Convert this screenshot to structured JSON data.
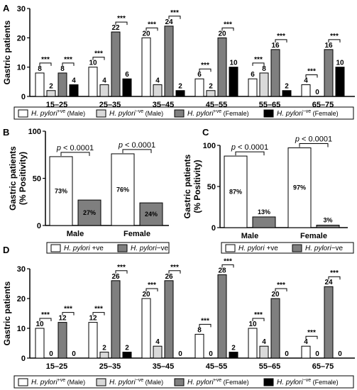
{
  "colors": {
    "male_pos": "#ffffff",
    "male_neg": "#d9d9d9",
    "female_pos": "#7f7f7f",
    "female_neg": "#000000",
    "stroke": "#000000"
  },
  "chart_data": [
    {
      "panel": "A",
      "type": "bar",
      "ylabel": "Gastric patients",
      "ylim": [
        0,
        30
      ],
      "yticks": [
        "0",
        "10",
        "20",
        "30"
      ],
      "categories": [
        "15–25",
        "25–35",
        "35–45",
        "45–55",
        "55–65",
        "65–75"
      ],
      "series": [
        {
          "name": "H. pylori +ve (Male)",
          "values": [
            8,
            10,
            20,
            6,
            6,
            4
          ]
        },
        {
          "name": "H. pylori −ve (Male)",
          "values": [
            2,
            4,
            4,
            2,
            8,
            0
          ]
        },
        {
          "name": "H. pylori +ve (Female)",
          "values": [
            8,
            22,
            24,
            20,
            16,
            16
          ]
        },
        {
          "name": "H. pylori −ve (Female)",
          "values": [
            4,
            6,
            2,
            10,
            2,
            10
          ]
        }
      ],
      "significance": "***",
      "legend": [
        {
          "main": "H. pylori",
          "sup": "+ve",
          "tail": " (Male)"
        },
        {
          "main": "H. pylori",
          "sup": "−ve",
          "tail": " (Male)"
        },
        {
          "main": "H. pylori",
          "sup": "+ve",
          "tail": " (Female)"
        },
        {
          "main": "H. pylori",
          "sup": "−ve",
          "tail": " (Female)"
        }
      ]
    },
    {
      "panel": "B",
      "type": "bar",
      "ylabel": "Gastric patients",
      "ylabel2": "(% Positivity)",
      "ylim": [
        0,
        100
      ],
      "yticks": [
        "0",
        "50",
        "100"
      ],
      "categories": [
        "Male",
        "Female"
      ],
      "series": [
        {
          "name": "H. pylori +ve",
          "values": [
            73,
            76
          ],
          "labels": [
            "73%",
            "76%"
          ]
        },
        {
          "name": "H. pylori −ve",
          "values": [
            27,
            24
          ],
          "labels": [
            "27%",
            "24%"
          ]
        }
      ],
      "significance": "p < 0.0001",
      "legend": [
        {
          "main": "H. pylori",
          "sup": "",
          "tail": " +ve"
        },
        {
          "main": "H. pylori",
          "sup": "",
          "tail": "−ve"
        }
      ]
    },
    {
      "panel": "C",
      "type": "bar",
      "ylabel": "Gastric patients",
      "ylabel2": "(% Positivity)",
      "ylim": [
        0,
        100
      ],
      "yticks": [
        "0",
        "50",
        "100"
      ],
      "categories": [
        "Male",
        "Female"
      ],
      "series": [
        {
          "name": "H. pylori +ve",
          "values": [
            87,
            97
          ],
          "labels": [
            "87%",
            "97%"
          ]
        },
        {
          "name": "H. pylori −ve",
          "values": [
            13,
            3
          ],
          "labels": [
            "13%",
            "3%"
          ]
        }
      ],
      "significance": "p < 0.0001",
      "legend": [
        {
          "main": "H. pylori",
          "sup": "",
          "tail": " +ve"
        },
        {
          "main": "H. pylori",
          "sup": "",
          "tail": "−ve"
        }
      ]
    },
    {
      "panel": "D",
      "type": "bar",
      "ylabel": "Gastric patients",
      "ylim": [
        0,
        30
      ],
      "yticks": [
        "0",
        "10",
        "20",
        "30"
      ],
      "categories": [
        "15–25",
        "25–35",
        "35–45",
        "45–55",
        "55–65",
        "65–75"
      ],
      "series": [
        {
          "name": "H. pylori +ve (Male)",
          "values": [
            10,
            12,
            20,
            8,
            10,
            4
          ]
        },
        {
          "name": "H. pylori −ve (Male)",
          "values": [
            0,
            2,
            4,
            0,
            4,
            0
          ]
        },
        {
          "name": "H. pylori +ve (Female)",
          "values": [
            12,
            26,
            26,
            28,
            20,
            24
          ]
        },
        {
          "name": "H. pylori −ve (Female)",
          "values": [
            0,
            2,
            0,
            2,
            0,
            0
          ]
        }
      ],
      "significance": "***",
      "legend": [
        {
          "main": "H. pylori",
          "sup": "+ve",
          "tail": " (Male)"
        },
        {
          "main": "H. pylori",
          "sup": "−ve",
          "tail": " (Male)"
        },
        {
          "main": "H. pylori",
          "sup": "+ve",
          "tail": " (Female)"
        },
        {
          "main": "H. pylori",
          "sup": "−ve",
          "tail": " (Female)"
        }
      ]
    }
  ]
}
